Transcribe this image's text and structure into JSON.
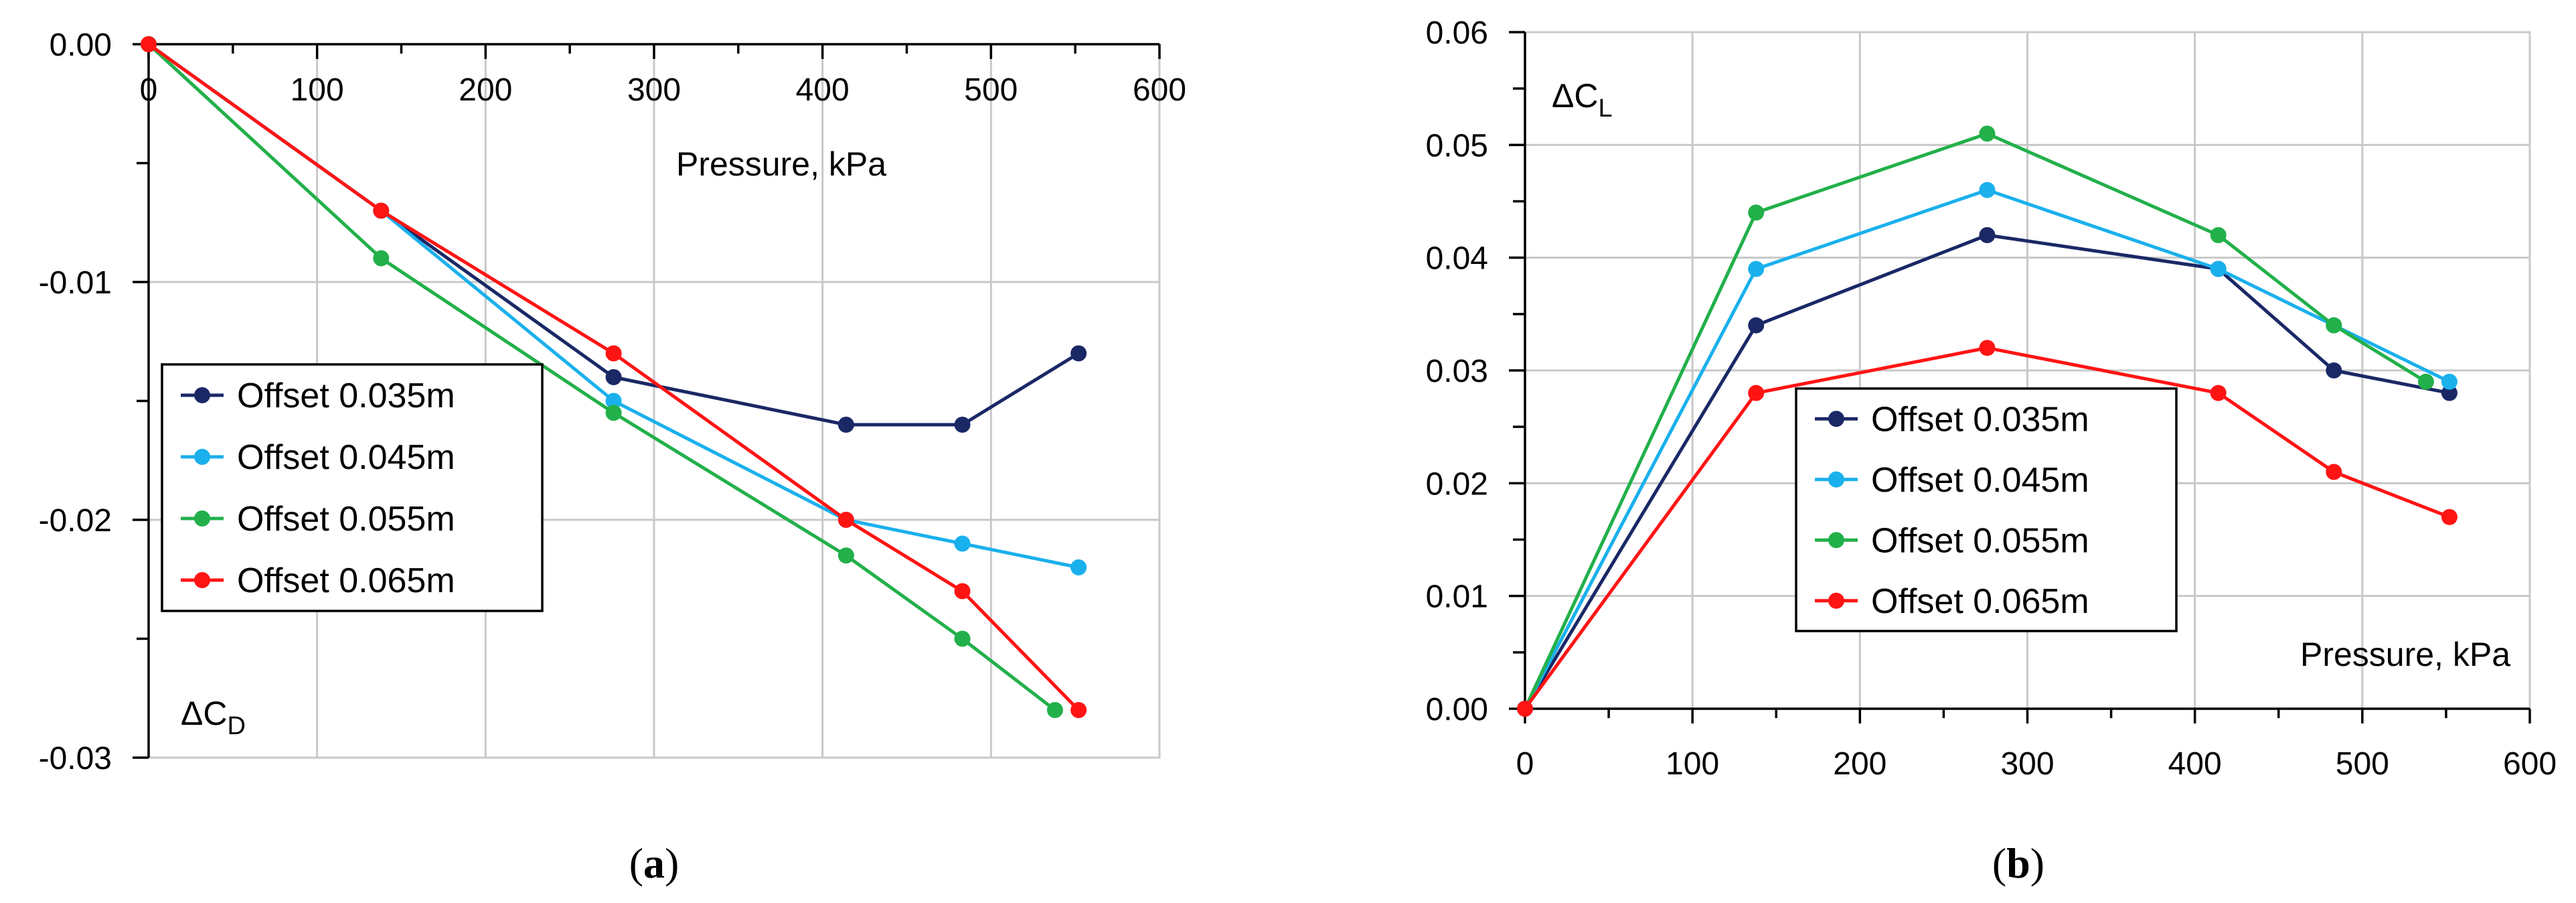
{
  "chart_data": [
    {
      "type": "line",
      "panel_label": {
        "open": "(",
        "letter": "a",
        "close": ")"
      },
      "xlabel": "Pressure, kPa",
      "ylabel": {
        "main": "ΔC",
        "sub": "D"
      },
      "xlim": [
        0,
        600
      ],
      "ylim": [
        -0.03,
        0
      ],
      "x_ticks": [
        "0",
        "100",
        "200",
        "300",
        "400",
        "500",
        "600"
      ],
      "y_ticks": [
        "0.00",
        "-0.01",
        "-0.02",
        "-0.03"
      ],
      "y_tick_values": [
        0,
        -0.01,
        -0.02,
        -0.03
      ],
      "legend_position": "middle-left",
      "series": [
        {
          "name": "Offset 0.035m",
          "color": "#1a2866",
          "x": [
            0,
            138,
            276,
            414,
            483,
            552
          ],
          "values": [
            0,
            -0.007,
            -0.014,
            -0.016,
            -0.016,
            -0.013
          ]
        },
        {
          "name": "Offset 0.045m",
          "color": "#1ab0ec",
          "x": [
            0,
            138,
            276,
            414,
            483,
            552
          ],
          "values": [
            0,
            -0.007,
            -0.015,
            -0.02,
            -0.021,
            -0.022
          ]
        },
        {
          "name": "Offset 0.055m",
          "color": "#22b04a",
          "x": [
            0,
            138,
            276,
            414,
            483,
            538
          ],
          "values": [
            0,
            -0.009,
            -0.0155,
            -0.0215,
            -0.025,
            -0.028
          ]
        },
        {
          "name": "Offset 0.065m",
          "color": "#ff1414",
          "x": [
            0,
            138,
            276,
            414,
            483,
            552
          ],
          "values": [
            0,
            -0.007,
            -0.013,
            -0.02,
            -0.023,
            -0.028
          ]
        }
      ]
    },
    {
      "type": "line",
      "panel_label": {
        "open": "(",
        "letter": "b",
        "close": ")"
      },
      "xlabel": "Pressure, kPa",
      "ylabel": {
        "main": "ΔC",
        "sub": "L"
      },
      "xlim": [
        0,
        600
      ],
      "ylim": [
        0,
        0.06
      ],
      "x_ticks": [
        "0",
        "100",
        "200",
        "300",
        "400",
        "500",
        "600"
      ],
      "y_ticks": [
        "0.00",
        "0.01",
        "0.02",
        "0.03",
        "0.04",
        "0.05",
        "0.06"
      ],
      "y_tick_values": [
        0,
        0.01,
        0.02,
        0.03,
        0.04,
        0.05,
        0.06
      ],
      "legend_position": "lower-middle",
      "series": [
        {
          "name": "Offset 0.035m",
          "color": "#1a2866",
          "x": [
            0,
            138,
            276,
            414,
            483,
            552
          ],
          "values": [
            0,
            0.034,
            0.042,
            0.039,
            0.03,
            0.028
          ]
        },
        {
          "name": "Offset 0.045m",
          "color": "#1ab0ec",
          "x": [
            0,
            138,
            276,
            414,
            483,
            552
          ],
          "values": [
            0,
            0.039,
            0.046,
            0.039,
            0.034,
            0.029
          ]
        },
        {
          "name": "Offset 0.055m",
          "color": "#22b04a",
          "x": [
            0,
            138,
            276,
            414,
            483,
            538
          ],
          "values": [
            0,
            0.044,
            0.051,
            0.042,
            0.034,
            0.029
          ]
        },
        {
          "name": "Offset 0.065m",
          "color": "#ff1414",
          "x": [
            0,
            138,
            276,
            414,
            483,
            552
          ],
          "values": [
            0,
            0.028,
            0.032,
            0.028,
            0.021,
            0.017
          ]
        }
      ]
    }
  ]
}
